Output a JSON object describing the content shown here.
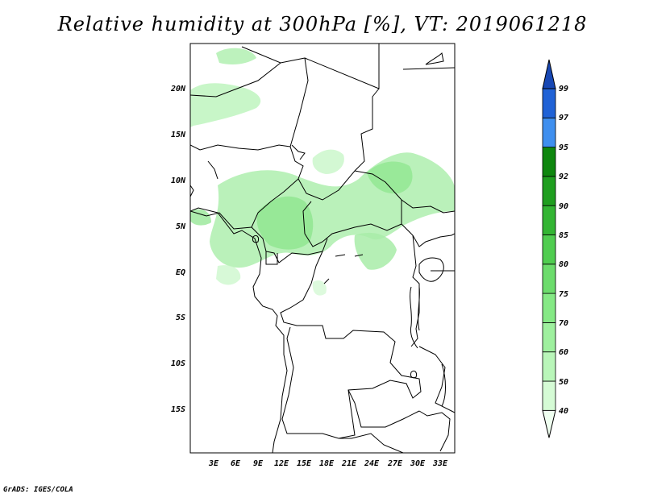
{
  "title": "Relative humidity at 300hPa [%], VT: 2019061218",
  "credit": "GrADS: IGES/COLA",
  "map": {
    "lat_labels": [
      "20N",
      "15N",
      "10N",
      "5N",
      "EQ",
      "5S",
      "10S",
      "15S"
    ],
    "lon_labels": [
      "3E",
      "6E",
      "9E",
      "12E",
      "15E",
      "18E",
      "21E",
      "24E",
      "27E",
      "30E",
      "33E"
    ]
  },
  "colorbar": {
    "levels": [
      "40",
      "50",
      "60",
      "70",
      "75",
      "80",
      "85",
      "90",
      "92",
      "95",
      "97",
      "99"
    ],
    "colors": [
      "#effff0",
      "#d5fbd5",
      "#b9f6b9",
      "#9ef09e",
      "#85e985",
      "#6cdc6c",
      "#50cd50",
      "#33b533",
      "#1f9e1f",
      "#0e870e",
      "#3f8fef",
      "#2062d6",
      "#1848b4"
    ]
  }
}
